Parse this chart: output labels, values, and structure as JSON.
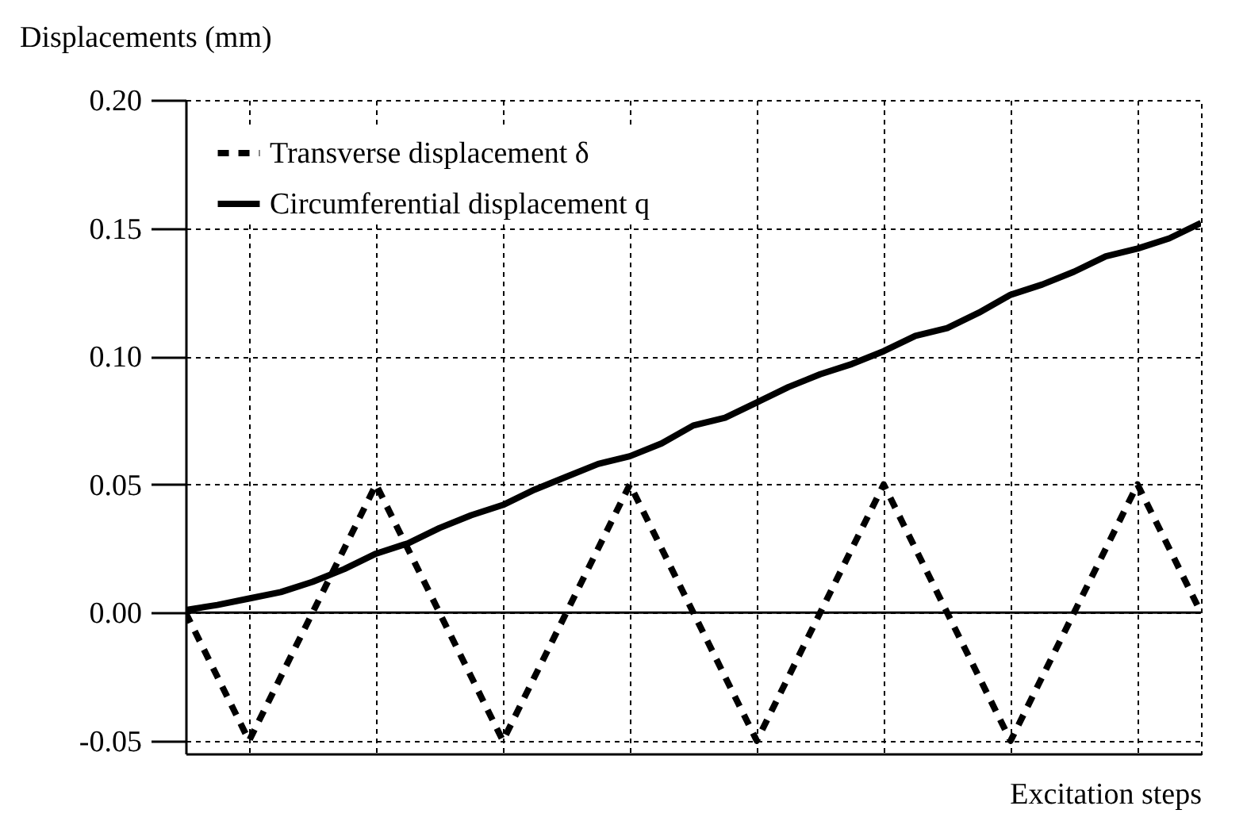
{
  "chart_data": {
    "type": "line",
    "xlabel": "Excitation steps",
    "ylabel": "Displacements (mm)",
    "categories": [
      null,
      null,
      null,
      null,
      null,
      null,
      null,
      null,
      null,
      null,
      null,
      null,
      null,
      null,
      null,
      null,
      null,
      null,
      null,
      null,
      null,
      null,
      null,
      null,
      null,
      null,
      null,
      null,
      null,
      null,
      null,
      null,
      null
    ],
    "series": [
      {
        "name": "Transverse displacement δ",
        "color": "#000000",
        "line_style": "dashed",
        "values": [
          0,
          -0.025,
          -0.05,
          -0.025,
          0,
          0.025,
          0.05,
          0.025,
          0,
          -0.025,
          -0.05,
          -0.025,
          0,
          0.025,
          0.05,
          0.025,
          0,
          -0.025,
          -0.05,
          -0.025,
          0,
          0.025,
          0.05,
          0.025,
          0,
          -0.025,
          -0.05,
          -0.025,
          0,
          0.025,
          0.05,
          0.025,
          0
        ]
      },
      {
        "name": "Circumferential displacement q",
        "color": "#000000",
        "line_style": "solid",
        "values": [
          0.001,
          0.003,
          0.0055,
          0.008,
          0.012,
          0.017,
          0.023,
          0.027,
          0.033,
          0.038,
          0.042,
          0.048,
          0.053,
          0.058,
          0.061,
          0.066,
          0.073,
          0.076,
          0.082,
          0.088,
          0.093,
          0.097,
          0.102,
          0.108,
          0.111,
          0.117,
          0.124,
          0.128,
          0.133,
          0.139,
          0.142,
          0.146,
          0.152
        ]
      }
    ],
    "ylim": [
      -0.055,
      0.2
    ],
    "yticks": [
      {
        "value": -0.05,
        "label": "-0.05"
      },
      {
        "value": 0,
        "label": "0.00"
      },
      {
        "value": 0.05,
        "label": "0.05"
      },
      {
        "value": 0.1,
        "label": "0.10"
      },
      {
        "value": 0.15,
        "label": "0.15"
      },
      {
        "value": 0.2,
        "label": "0.20"
      }
    ],
    "grid": true,
    "legend": "top left",
    "tick_labels": "y"
  }
}
